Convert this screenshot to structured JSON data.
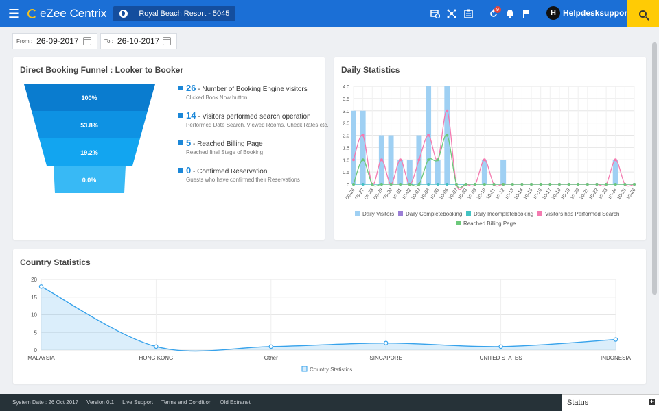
{
  "header": {
    "app_name": "eZee Centrix",
    "property": "Royal Beach Resort - 5045",
    "notification_count": "9",
    "user_initial": "H",
    "user_name": "Helpdesksupport!",
    "icons": [
      "menu-icon",
      "calendar-clock-icon",
      "network-icon",
      "clipboard-icon",
      "refresh-icon",
      "bell-icon",
      "flag-icon",
      "search-icon"
    ]
  },
  "filters": {
    "from_label": "From :",
    "from_value": "26-09-2017",
    "to_label": "To :",
    "to_value": "26-10-2017"
  },
  "funnel": {
    "title": "Direct Booking Funnel : Looker to Booker",
    "levels": [
      "100%",
      "53.8%",
      "19.2%",
      "0.0%"
    ],
    "colors": [
      "#0a7ccf",
      "#0e92e3",
      "#12a5f0",
      "#38b9f5"
    ],
    "stats": [
      {
        "num": "26",
        "text": "- Number of Booking Engine visitors",
        "sub": "Clicked Book Now button"
      },
      {
        "num": "14",
        "text": "- Visitors performed search operation",
        "sub": "Performed Date Search, Viewed Rooms, Check Rates etc."
      },
      {
        "num": "5",
        "text": "- Reached Billing Page",
        "sub": "Reached final Stage of Booking"
      },
      {
        "num": "0",
        "text": "- Confirmed Reservation",
        "sub": "Guests who have confirmed their Reservations"
      }
    ]
  },
  "daily_title": "Daily Statistics",
  "country_title": "Country Statistics",
  "chart_data": [
    {
      "type": "bar",
      "title": "Daily Statistics",
      "categories": [
        "09-26",
        "09-27",
        "09-28",
        "09-29",
        "09-30",
        "10-01",
        "10-02",
        "10-03",
        "10-04",
        "10-05",
        "10-06",
        "10-07",
        "10-08",
        "10-09",
        "10-10",
        "10-11",
        "10-12",
        "10-13",
        "10-14",
        "10-15",
        "10-16",
        "10-17",
        "10-18",
        "10-19",
        "10-20",
        "10-21",
        "10-22",
        "10-23",
        "10-24",
        "10-25",
        "10-26"
      ],
      "ylim": [
        0,
        4
      ],
      "yticks": [
        "0",
        "0.5",
        "1.0",
        "1.5",
        "2.0",
        "2.5",
        "3.0",
        "3.5",
        "4.0"
      ],
      "grid": true,
      "legend": "bottom",
      "series": [
        {
          "name": "Daily Visitors",
          "kind": "bar",
          "color": "#9fd0f3",
          "values": [
            3,
            3,
            0,
            2,
            2,
            1,
            1,
            2,
            4,
            1,
            4,
            0,
            0,
            0,
            1,
            0,
            1,
            0,
            0,
            0,
            0,
            0,
            0,
            0,
            0,
            0,
            0,
            0,
            1,
            0,
            0
          ]
        },
        {
          "name": "Daily Completebooking",
          "kind": "line",
          "color": "#9b7fd6",
          "values": [
            0,
            0,
            0,
            0,
            0,
            0,
            0,
            0,
            0,
            0,
            0,
            0,
            0,
            0,
            0,
            0,
            0,
            0,
            0,
            0,
            0,
            0,
            0,
            0,
            0,
            0,
            0,
            0,
            0,
            0,
            0
          ]
        },
        {
          "name": "Daily Incompletebooking",
          "kind": "line",
          "color": "#43c3c3",
          "values": [
            0,
            0,
            0,
            0,
            0,
            0,
            0,
            0,
            0,
            0,
            0,
            0,
            0,
            0,
            0,
            0,
            0,
            0,
            0,
            0,
            0,
            0,
            0,
            0,
            0,
            0,
            0,
            0,
            0,
            0,
            0
          ]
        },
        {
          "name": "Visitors has Performed Search",
          "kind": "line",
          "color": "#f47ab0",
          "values": [
            1,
            2,
            0,
            1,
            0,
            1,
            0,
            1,
            2,
            1,
            3,
            0,
            0,
            0,
            1,
            0,
            0,
            0,
            0,
            0,
            0,
            0,
            0,
            0,
            0,
            0,
            0,
            0,
            1,
            0,
            0
          ]
        },
        {
          "name": "Reached Billing Page",
          "kind": "line",
          "color": "#6cc87a",
          "values": [
            0,
            1,
            0,
            0,
            0,
            0,
            0,
            0,
            1,
            1,
            2,
            0,
            0,
            0,
            0,
            0,
            0,
            0,
            0,
            0,
            0,
            0,
            0,
            0,
            0,
            0,
            0,
            0,
            0,
            0,
            0
          ]
        }
      ]
    },
    {
      "type": "area",
      "title": "Country Statistics",
      "categories": [
        "MALAYSIA",
        "HONG KONG",
        "Other",
        "SINGAPORE",
        "UNITED STATES",
        "INDONESIA"
      ],
      "ylim": [
        0,
        20
      ],
      "yticks": [
        "0",
        "5",
        "10",
        "15",
        "20"
      ],
      "grid": true,
      "legend": "bottom",
      "series": [
        {
          "name": "Country Statistics",
          "color": "#36a2eb",
          "values": [
            18,
            1,
            1,
            2,
            1,
            3
          ]
        }
      ]
    }
  ],
  "footer": {
    "system_date": "System Date : 26 Oct 2017",
    "version": "Version 0.1",
    "live_support": "Live Support",
    "terms": "Terms and Condition",
    "old_extranet": "Old Extranet",
    "status": "Status"
  }
}
